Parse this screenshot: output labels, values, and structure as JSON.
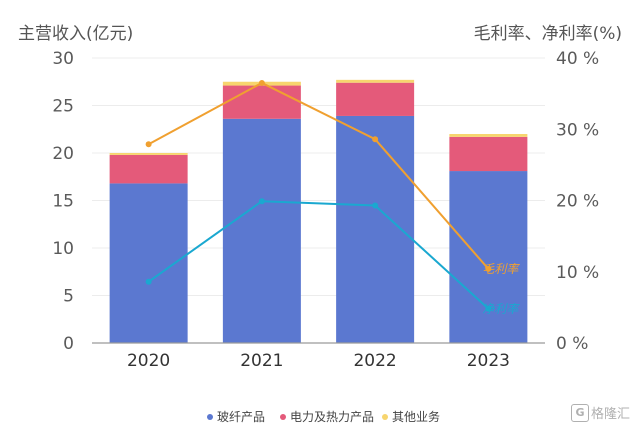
{
  "chart_data": {
    "type": "bar",
    "stacked": true,
    "categories": [
      "2020",
      "2021",
      "2022",
      "2023"
    ],
    "series": [
      {
        "name": "玻纤产品",
        "axis": "left",
        "color": "#5b78d0",
        "values": [
          16.8,
          23.6,
          23.9,
          18.1
        ]
      },
      {
        "name": "电力及热力产品",
        "axis": "left",
        "color": "#e45a7a",
        "values": [
          3.0,
          3.5,
          3.5,
          3.6
        ]
      },
      {
        "name": "其他业务",
        "axis": "left",
        "color": "#f7d56e",
        "values": [
          0.2,
          0.4,
          0.3,
          0.3
        ]
      }
    ],
    "lines": [
      {
        "name": "毛利率",
        "axis": "right",
        "color": "#f0a030",
        "values": [
          27.9,
          36.5,
          28.6,
          10.4
        ],
        "label": "毛利率"
      },
      {
        "name": "净利率",
        "axis": "right",
        "color": "#1aa8d0",
        "values": [
          8.6,
          19.9,
          19.3,
          4.8
        ],
        "label": "净利率"
      }
    ],
    "ylabel_left": "主营收入(亿元)",
    "ylabel_right": "毛利率、净利率(%)",
    "ylim_left": [
      0,
      30
    ],
    "ylim_right": [
      0,
      40
    ],
    "left_ticks": [
      "0",
      "5",
      "10",
      "15",
      "20",
      "25",
      "30"
    ],
    "right_ticks": [
      "0 %",
      "10 %",
      "20 %",
      "30 %",
      "40 %"
    ],
    "grid": true,
    "legend_position": "bottom"
  },
  "legend": [
    {
      "label": "玻纤产品",
      "color": "#5b78d0"
    },
    {
      "label": "电力及热力产品",
      "color": "#e45a7a"
    },
    {
      "label": "其他业务",
      "color": "#f7d56e"
    }
  ],
  "watermark": "格隆汇"
}
